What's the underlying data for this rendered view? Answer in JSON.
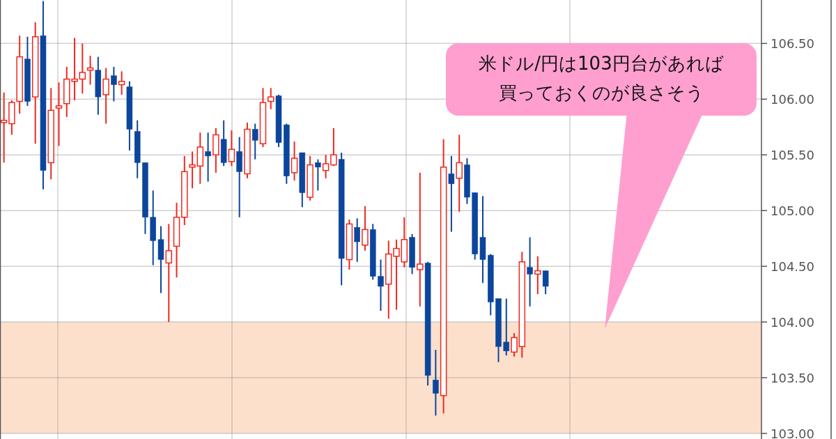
{
  "chart_data": {
    "type": "candlestick",
    "categories": [
      null,
      null,
      null,
      null,
      null,
      null,
      null,
      null,
      null,
      null,
      null,
      null,
      null,
      null,
      null,
      null,
      null,
      null,
      null,
      null,
      null,
      null,
      null,
      null,
      null,
      null,
      null,
      null,
      null,
      null,
      null,
      null,
      null,
      null,
      null,
      null,
      null,
      null,
      null,
      null,
      null,
      null,
      null,
      null,
      null,
      null,
      null,
      null,
      null,
      null,
      null,
      null,
      null,
      null,
      null,
      null,
      null,
      null,
      null,
      null,
      null,
      null,
      null,
      null,
      null,
      null,
      null,
      null,
      null,
      null,
      null,
      null,
      null,
      null,
      null,
      null,
      null,
      null,
      null,
      null,
      null,
      null,
      null,
      null,
      null,
      null,
      null,
      null,
      null,
      null,
      null,
      null,
      null,
      null,
      null,
      null,
      null
    ],
    "ohlc": [
      [
        105.79,
        106.06,
        105.43,
        105.81
      ],
      [
        105.78,
        105.99,
        105.68,
        105.97
      ],
      [
        105.98,
        106.57,
        105.87,
        106.38
      ],
      [
        106.36,
        106.56,
        105.94,
        105.98
      ],
      [
        106.02,
        106.69,
        105.6,
        106.56
      ],
      [
        106.57,
        106.88,
        105.19,
        105.36
      ],
      [
        105.43,
        106.1,
        105.28,
        105.9
      ],
      [
        105.92,
        106.15,
        105.58,
        105.94
      ],
      [
        105.96,
        106.29,
        105.84,
        106.18
      ],
      [
        106.16,
        106.55,
        105.99,
        106.18
      ],
      [
        106.18,
        106.5,
        106.05,
        106.24
      ],
      [
        106.26,
        106.39,
        106.13,
        106.28
      ],
      [
        106.26,
        106.38,
        105.86,
        106.02
      ],
      [
        106.04,
        106.28,
        105.78,
        106.18
      ],
      [
        106.21,
        106.29,
        105.98,
        106.13
      ],
      [
        106.13,
        106.25,
        106.04,
        106.16
      ],
      [
        106.11,
        106.16,
        105.54,
        105.73
      ],
      [
        105.71,
        105.81,
        105.29,
        105.43
      ],
      [
        105.43,
        105.43,
        104.79,
        104.94
      ],
      [
        104.94,
        105.18,
        104.51,
        104.73
      ],
      [
        104.74,
        104.86,
        104.26,
        104.56
      ],
      [
        104.53,
        104.88,
        104.0,
        104.64
      ],
      [
        104.68,
        105.07,
        104.4,
        104.94
      ],
      [
        104.94,
        105.49,
        104.87,
        105.35
      ],
      [
        105.39,
        105.53,
        105.2,
        105.41
      ],
      [
        105.4,
        105.7,
        105.24,
        105.57
      ],
      [
        105.53,
        105.7,
        105.26,
        105.49
      ],
      [
        105.5,
        105.74,
        105.34,
        105.68
      ],
      [
        105.64,
        105.81,
        105.4,
        105.43
      ],
      [
        105.44,
        105.72,
        105.4,
        105.55
      ],
      [
        105.53,
        105.66,
        104.94,
        105.35
      ],
      [
        105.33,
        105.79,
        105.29,
        105.73
      ],
      [
        105.73,
        105.78,
        105.46,
        105.63
      ],
      [
        105.6,
        106.1,
        105.57,
        105.97
      ],
      [
        105.98,
        106.1,
        105.91,
        106.02
      ],
      [
        106.03,
        106.04,
        105.57,
        105.61
      ],
      [
        105.77,
        105.78,
        105.24,
        105.31
      ],
      [
        105.34,
        105.62,
        105.27,
        105.47
      ],
      [
        105.52,
        105.52,
        105.03,
        105.16
      ],
      [
        105.12,
        105.49,
        105.09,
        105.41
      ],
      [
        105.43,
        105.46,
        105.18,
        105.39
      ],
      [
        105.36,
        105.5,
        105.29,
        105.42
      ],
      [
        105.41,
        105.74,
        105.4,
        105.5
      ],
      [
        105.46,
        105.52,
        104.33,
        104.57
      ],
      [
        104.56,
        104.92,
        104.47,
        104.88
      ],
      [
        104.85,
        104.93,
        104.54,
        104.72
      ],
      [
        104.69,
        105.04,
        104.64,
        104.83
      ],
      [
        104.83,
        104.88,
        104.38,
        104.41
      ],
      [
        104.41,
        104.56,
        104.1,
        104.32
      ],
      [
        104.34,
        104.73,
        104.03,
        104.61
      ],
      [
        104.59,
        104.74,
        104.11,
        104.66
      ],
      [
        104.54,
        104.94,
        104.49,
        104.74
      ],
      [
        104.76,
        104.79,
        104.43,
        104.49
      ],
      [
        104.47,
        105.34,
        104.14,
        104.52
      ],
      [
        104.53,
        104.54,
        103.43,
        103.52
      ],
      [
        103.48,
        103.75,
        103.16,
        103.36
      ],
      [
        103.34,
        105.64,
        103.18,
        105.39
      ],
      [
        105.33,
        105.49,
        104.81,
        105.24
      ],
      [
        105.29,
        105.68,
        104.99,
        105.43
      ],
      [
        105.41,
        105.47,
        105.06,
        105.12
      ],
      [
        105.16,
        105.16,
        104.56,
        104.61
      ],
      [
        104.76,
        105.13,
        104.35,
        104.56
      ],
      [
        104.6,
        104.61,
        104.06,
        104.18
      ],
      [
        104.21,
        104.21,
        103.64,
        103.78
      ],
      [
        103.82,
        104.21,
        103.7,
        103.74
      ],
      [
        103.73,
        103.9,
        103.69,
        103.86
      ],
      [
        103.78,
        104.63,
        103.68,
        104.54
      ],
      [
        104.49,
        104.76,
        104.14,
        104.43
      ],
      [
        104.43,
        104.59,
        104.25,
        104.46
      ],
      [
        104.46,
        104.46,
        104.25,
        104.32
      ],
      null,
      null,
      null,
      null,
      null,
      null,
      null,
      null,
      null,
      null,
      null,
      null,
      null,
      null,
      null,
      null,
      null,
      null,
      null,
      null,
      null,
      null,
      null,
      null,
      null,
      null,
      null
    ],
    "colors": [
      "#f0281e",
      "#f0281e",
      "#f0281e",
      "#0c469c",
      "#f0281e",
      "#0c469c",
      "#f0281e",
      "#f0281e",
      "#f0281e",
      "#f0281e",
      "#f0281e",
      "#f0281e",
      "#0c469c",
      "#f0281e",
      "#0c469c",
      "#f0281e",
      "#0c469c",
      "#0c469c",
      "#0c469c",
      "#0c469c",
      "#0c469c",
      "#f0281e",
      "#f0281e",
      "#f0281e",
      "#f0281e",
      "#f0281e",
      "#0c469c",
      "#f0281e",
      "#0c469c",
      "#f0281e",
      "#0c469c",
      "#f0281e",
      "#0c469c",
      "#f0281e",
      "#f0281e",
      "#0c469c",
      "#0c469c",
      "#f0281e",
      "#0c469c",
      "#f0281e",
      "#0c469c",
      "#f0281e",
      "#f0281e",
      "#0c469c",
      "#f0281e",
      "#0c469c",
      "#f0281e",
      "#0c469c",
      "#0c469c",
      "#f0281e",
      "#f0281e",
      "#f0281e",
      "#0c469c",
      "#f0281e",
      "#0c469c",
      "#0c469c",
      "#f0281e",
      "#0c469c",
      "#f0281e",
      "#0c469c",
      "#0c469c",
      "#0c469c",
      "#0c469c",
      "#0c469c",
      "#0c469c",
      "#f0281e",
      "#f0281e",
      "#0c469c",
      "#f0281e",
      "#0c469c",
      null,
      null,
      null,
      null,
      null,
      null,
      null,
      null,
      null,
      null,
      null,
      null,
      null,
      null,
      null,
      null,
      null,
      null,
      null,
      null,
      null,
      null,
      null,
      null,
      null,
      null,
      null
    ],
    "ylim": [
      102.95,
      106.89
    ],
    "yticks": [
      {
        "value": 103,
        "label": "103.00"
      },
      {
        "value": 103.5,
        "label": "103.50"
      },
      {
        "value": 104,
        "label": "104.00"
      },
      {
        "value": 104.5,
        "label": "104.50"
      },
      {
        "value": 105,
        "label": "105.00"
      },
      {
        "value": 105.5,
        "label": "105.50"
      },
      {
        "value": 106,
        "label": "106.00"
      },
      {
        "value": 106.5,
        "label": "106.50"
      }
    ],
    "tick_labels": "y",
    "grid": true,
    "bands": [
      {
        "axis": "y",
        "from": 103,
        "to": 104,
        "color": "#fde0cc"
      }
    ],
    "annotations": [
      "米ドル/円は103円台があれば買っておくのが良さそう"
    ]
  }
}
